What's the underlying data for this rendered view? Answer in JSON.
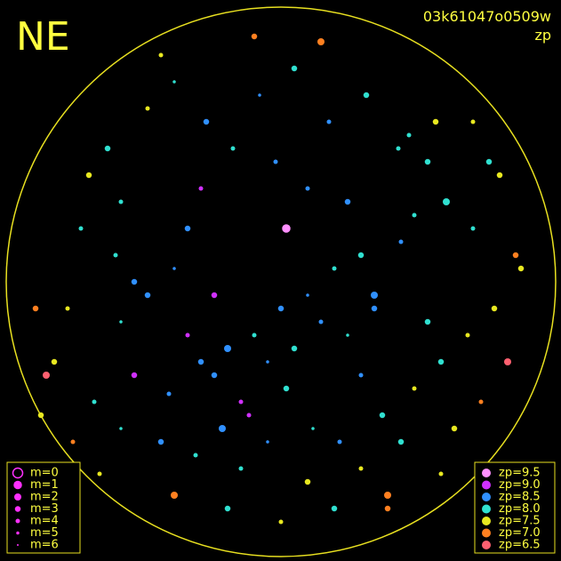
{
  "corner_label": "NE",
  "frame_id": "03k61047o0509w",
  "color_key": "zp",
  "magnitude_legend": [
    {
      "label": "m=0",
      "m": 0
    },
    {
      "label": "m=1",
      "m": 1
    },
    {
      "label": "m=2",
      "m": 2
    },
    {
      "label": "m=3",
      "m": 3
    },
    {
      "label": "m=4",
      "m": 4
    },
    {
      "label": "m=5",
      "m": 5
    },
    {
      "label": "m=6",
      "m": 6
    }
  ],
  "zp_legend": [
    {
      "label": "zp=9.5",
      "zp": 9.5,
      "color": "#ff90ff"
    },
    {
      "label": "zp=9.0",
      "zp": 9.0,
      "color": "#d030ff"
    },
    {
      "label": "zp=8.5",
      "zp": 8.5,
      "color": "#3090ff"
    },
    {
      "label": "zp=8.0",
      "zp": 8.0,
      "color": "#30e0d0"
    },
    {
      "label": "zp=7.5",
      "zp": 7.5,
      "color": "#e8e820"
    },
    {
      "label": "zp=7.0",
      "zp": 7.0,
      "color": "#ff8020"
    },
    {
      "label": "zp=6.5",
      "zp": 6.5,
      "color": "#ff6070"
    }
  ],
  "stars": {
    "x": [
      -0.55,
      -0.42,
      -0.3,
      -0.2,
      -0.1,
      0.0,
      0.1,
      0.2,
      0.3,
      0.45,
      -0.6,
      -0.5,
      -0.35,
      -0.25,
      -0.15,
      -0.05,
      0.05,
      0.15,
      0.25,
      0.35,
      -0.7,
      -0.6,
      -0.45,
      -0.32,
      -0.22,
      -0.12,
      0.02,
      0.12,
      0.22,
      0.38,
      0.5,
      0.6,
      0.7,
      0.8,
      0.62,
      0.72,
      0.55,
      0.48,
      0.82,
      0.88,
      -0.8,
      -0.85,
      -0.75,
      -0.9,
      -0.78,
      -0.65,
      -0.5,
      -0.4,
      -0.28,
      -0.18,
      -0.08,
      0.05,
      0.18,
      0.32,
      0.44,
      0.58,
      -0.15,
      0.1,
      0.3,
      -0.4,
      -0.2,
      0.0,
      0.2,
      0.4,
      -0.6,
      -0.35,
      0.65,
      0.75,
      0.85,
      0.9,
      -0.92,
      -0.88,
      0.6,
      0.4,
      -0.45,
      -0.1,
      0.15,
      0.78,
      -0.68,
      0.25,
      -0.3,
      -0.55,
      0.5,
      0.35,
      0.02,
      -0.62,
      -0.72,
      0.72,
      0.45,
      -0.05,
      0.1,
      -0.25,
      0.3,
      -0.4,
      0.55,
      -0.02
    ],
    "y": [
      0.35,
      0.42,
      0.3,
      0.25,
      0.2,
      0.1,
      0.05,
      -0.05,
      -0.1,
      -0.15,
      0.15,
      0.05,
      0.2,
      0.35,
      0.45,
      0.3,
      0.25,
      0.15,
      0.2,
      0.1,
      0.45,
      0.55,
      0.6,
      0.65,
      0.55,
      0.5,
      0.4,
      0.55,
      0.6,
      0.5,
      0.4,
      0.3,
      0.2,
      0.1,
      -0.3,
      -0.2,
      -0.45,
      -0.55,
      -0.4,
      -0.1,
      0.1,
      0.3,
      -0.2,
      0.5,
      0.6,
      -0.5,
      -0.65,
      -0.75,
      -0.6,
      -0.5,
      -0.7,
      -0.8,
      -0.6,
      -0.7,
      -0.5,
      -0.6,
      0.7,
      0.75,
      0.7,
      0.8,
      0.85,
      0.9,
      0.85,
      0.8,
      -0.3,
      -0.2,
      0.55,
      0.45,
      0.3,
      -0.05,
      0.1,
      0.35,
      0.72,
      0.85,
      -0.85,
      -0.92,
      -0.9,
      -0.45,
      0.72,
      -0.3,
      -0.35,
      0.0,
      -0.25,
      0.05,
      -0.2,
      -0.1,
      -0.4,
      -0.6,
      0.6,
      0.6,
      -0.35,
      0.05,
      0.35,
      -0.05,
      0.15,
      -0.45
    ],
    "zp": [
      9.0,
      8.5,
      8.5,
      8.5,
      8.0,
      8.5,
      8.5,
      8.0,
      8.0,
      8.5,
      8.0,
      8.5,
      9.0,
      8.5,
      9.0,
      8.5,
      8.0,
      8.5,
      8.0,
      8.5,
      8.0,
      8.0,
      8.5,
      8.0,
      8.5,
      9.0,
      8.0,
      8.0,
      8.5,
      8.0,
      7.5,
      8.0,
      7.5,
      7.5,
      8.0,
      8.0,
      8.0,
      8.0,
      7.5,
      7.0,
      7.5,
      7.5,
      8.0,
      7.5,
      7.0,
      8.0,
      7.5,
      8.0,
      8.5,
      8.0,
      8.5,
      8.0,
      8.5,
      8.0,
      8.0,
      7.5,
      8.0,
      7.5,
      7.5,
      7.0,
      8.0,
      7.5,
      8.0,
      7.0,
      8.0,
      8.5,
      7.5,
      7.0,
      6.5,
      7.5,
      7.0,
      6.5,
      7.5,
      7.0,
      7.5,
      7.0,
      7.0,
      8.0,
      7.5,
      8.5,
      9.0,
      8.5,
      8.0,
      8.5,
      9.5,
      8.0,
      7.5,
      7.5,
      8.0,
      8.5,
      8.5,
      9.0,
      8.5,
      8.5,
      8.0,
      8.5
    ],
    "m": [
      3,
      4,
      3,
      2,
      4,
      3,
      5,
      4,
      3,
      4,
      5,
      3,
      4,
      3,
      4,
      5,
      3,
      4,
      5,
      3,
      4,
      5,
      3,
      4,
      2,
      4,
      3,
      5,
      4,
      3,
      4,
      3,
      4,
      3,
      2,
      4,
      3,
      4,
      3,
      3,
      4,
      3,
      4,
      3,
      4,
      3,
      4,
      5,
      3,
      4,
      5,
      3,
      4,
      3,
      4,
      3,
      4,
      3,
      4,
      2,
      3,
      4,
      3,
      2,
      4,
      3,
      3,
      4,
      2,
      3,
      3,
      2,
      4,
      3,
      4,
      3,
      2,
      3,
      4,
      3,
      4,
      3,
      4,
      2,
      1,
      4,
      3,
      4,
      3,
      5,
      4,
      3,
      4,
      5,
      3,
      4
    ]
  }
}
